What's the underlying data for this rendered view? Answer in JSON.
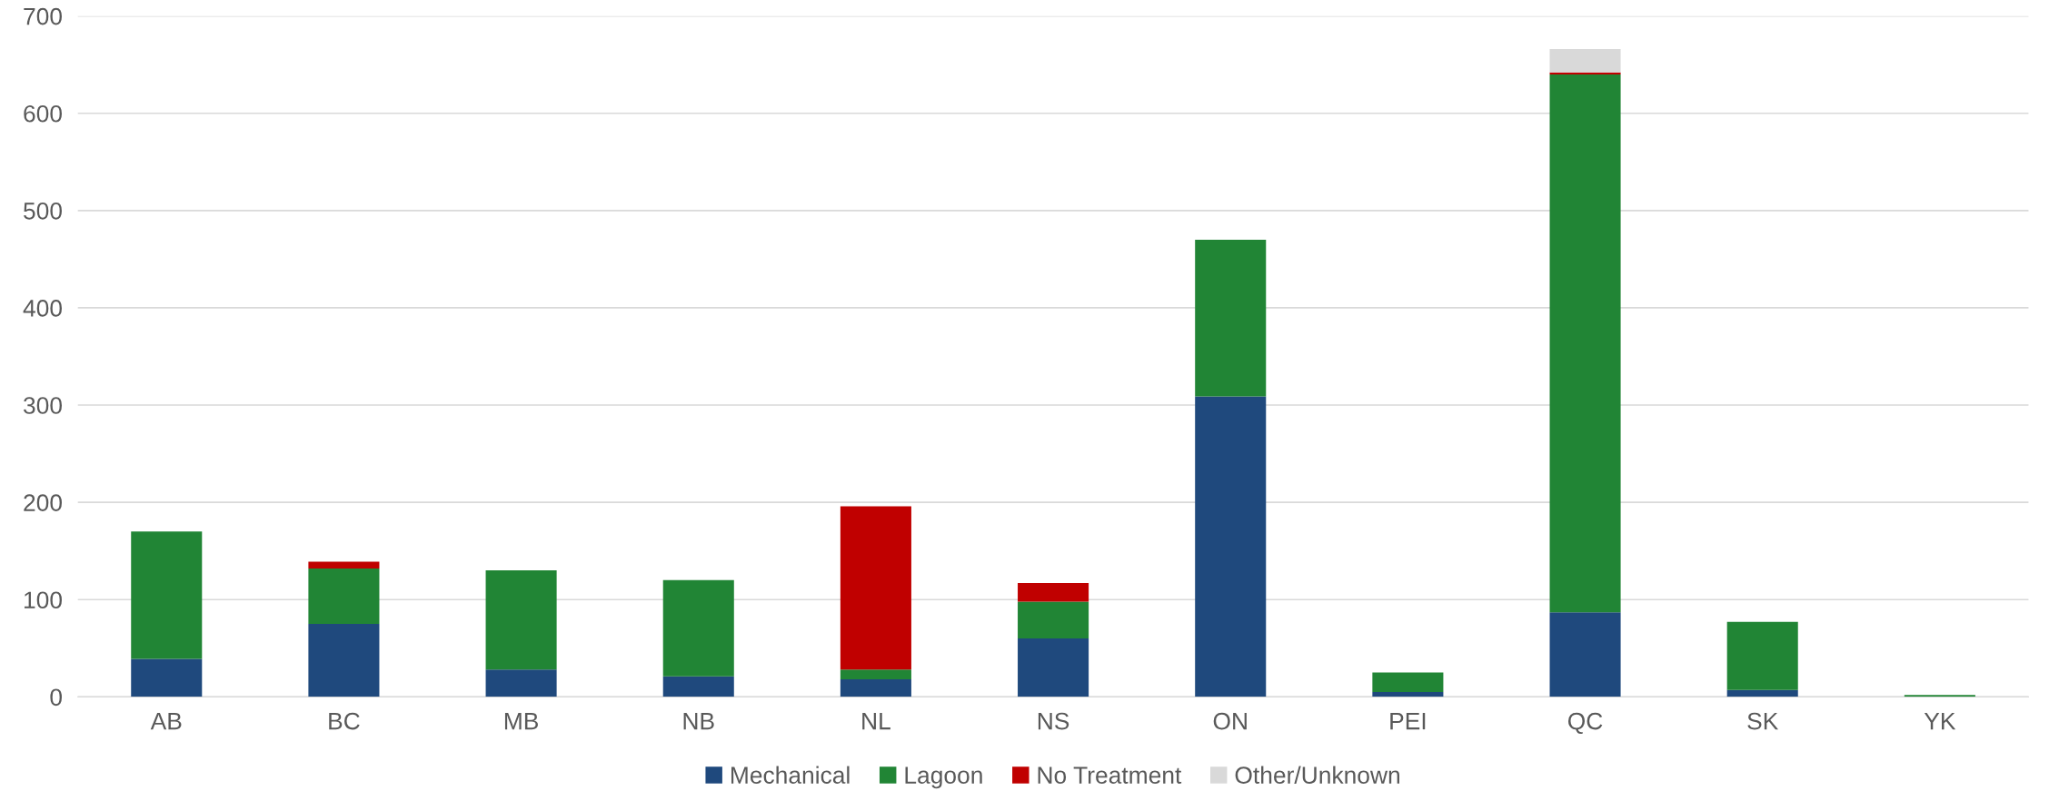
{
  "chart_data": {
    "type": "bar",
    "stacked": true,
    "categories": [
      "AB",
      "BC",
      "MB",
      "NB",
      "NL",
      "NS",
      "ON",
      "PEI",
      "QC",
      "SK",
      "YK"
    ],
    "series": [
      {
        "name": "Mechanical",
        "color": "#1f497d",
        "values": [
          39,
          75,
          28,
          21,
          18,
          60,
          309,
          5,
          87,
          7,
          0
        ]
      },
      {
        "name": "Lagoon",
        "color": "#218535",
        "values": [
          131,
          57,
          102,
          99,
          10,
          38,
          161,
          20,
          553,
          70,
          2
        ]
      },
      {
        "name": "No Treatment",
        "color": "#c00000",
        "values": [
          0,
          7,
          0,
          0,
          168,
          19,
          0,
          0,
          2,
          0,
          0
        ]
      },
      {
        "name": "Other/Unknown",
        "color": "#d9d9d9",
        "values": [
          0,
          0,
          0,
          0,
          0,
          0,
          0,
          0,
          24,
          0,
          0
        ]
      }
    ],
    "ylim": [
      0,
      700
    ],
    "yticks": [
      0,
      100,
      200,
      300,
      400,
      500,
      600,
      700
    ],
    "grid": "y",
    "legend": "bottom"
  }
}
